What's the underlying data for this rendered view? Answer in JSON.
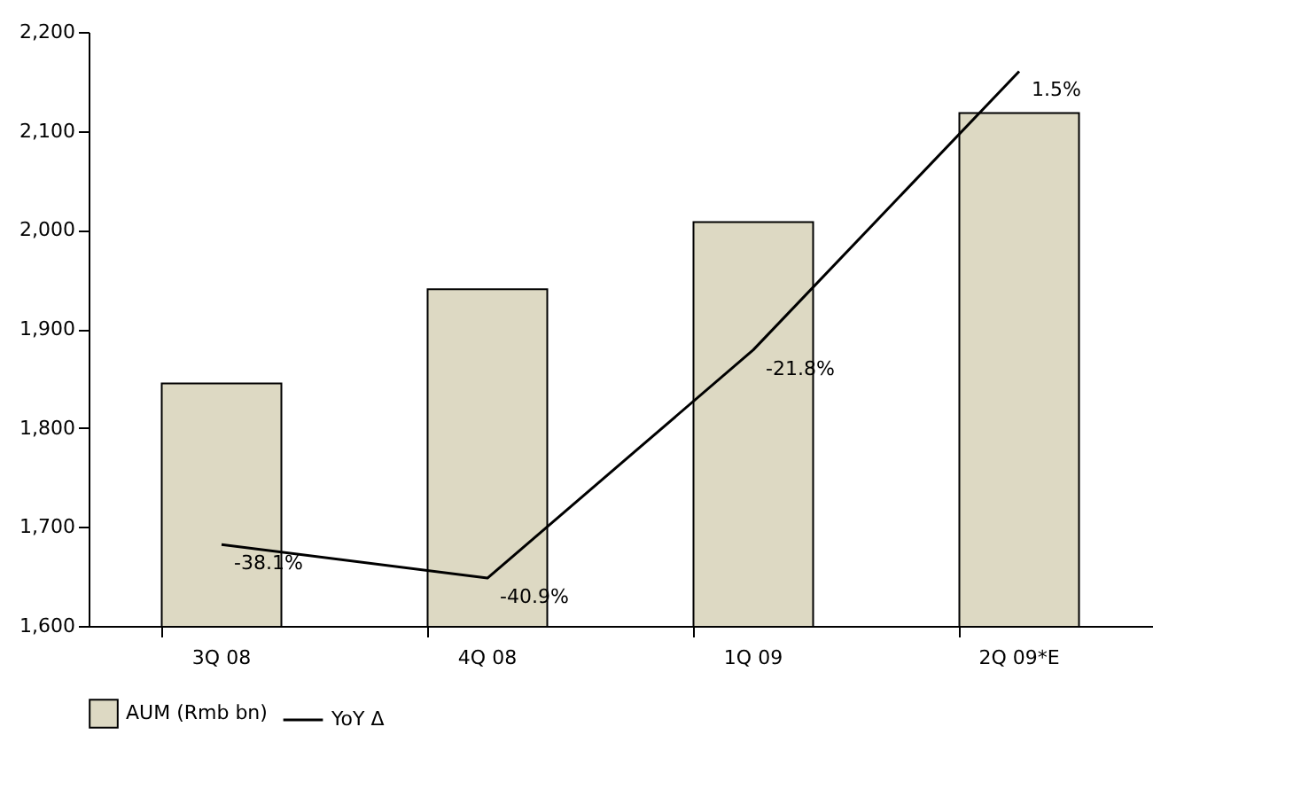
{
  "chart_data": {
    "type": "bar",
    "categories": [
      "3Q 08",
      "4Q 08",
      "1Q 09",
      "2Q 09*E"
    ],
    "series": [
      {
        "name": "AUM (Rmb bn)",
        "color": "#ddd9c3",
        "values": [
          1845,
          1940,
          2008,
          2118
        ]
      },
      {
        "name": "YoY Δ",
        "type": "line",
        "axis": "y2",
        "color": "#000000",
        "values": [
          -38.1,
          -40.9,
          -21.8,
          1.5
        ],
        "value_labels": [
          "-38.1%",
          "-40.9%",
          "-21.8%",
          "1.5%"
        ]
      }
    ],
    "ylim": [
      1600,
      2200
    ],
    "yticks": [
      {
        "value": 1600,
        "label": "1,600"
      },
      {
        "value": 1700,
        "label": "1,700"
      },
      {
        "value": 1800,
        "label": "1,800"
      },
      {
        "value": 1900,
        "label": "1,900"
      },
      {
        "value": 2000,
        "label": "2,000"
      },
      {
        "value": 2100,
        "label": "2,100"
      },
      {
        "value": 2200,
        "label": "2,200"
      }
    ],
    "y2lim": [
      -44.9,
      4.8
    ],
    "tick_labels": "xy",
    "legend": "bottom",
    "grid": false,
    "marker": "none",
    "line_style": "solid"
  }
}
